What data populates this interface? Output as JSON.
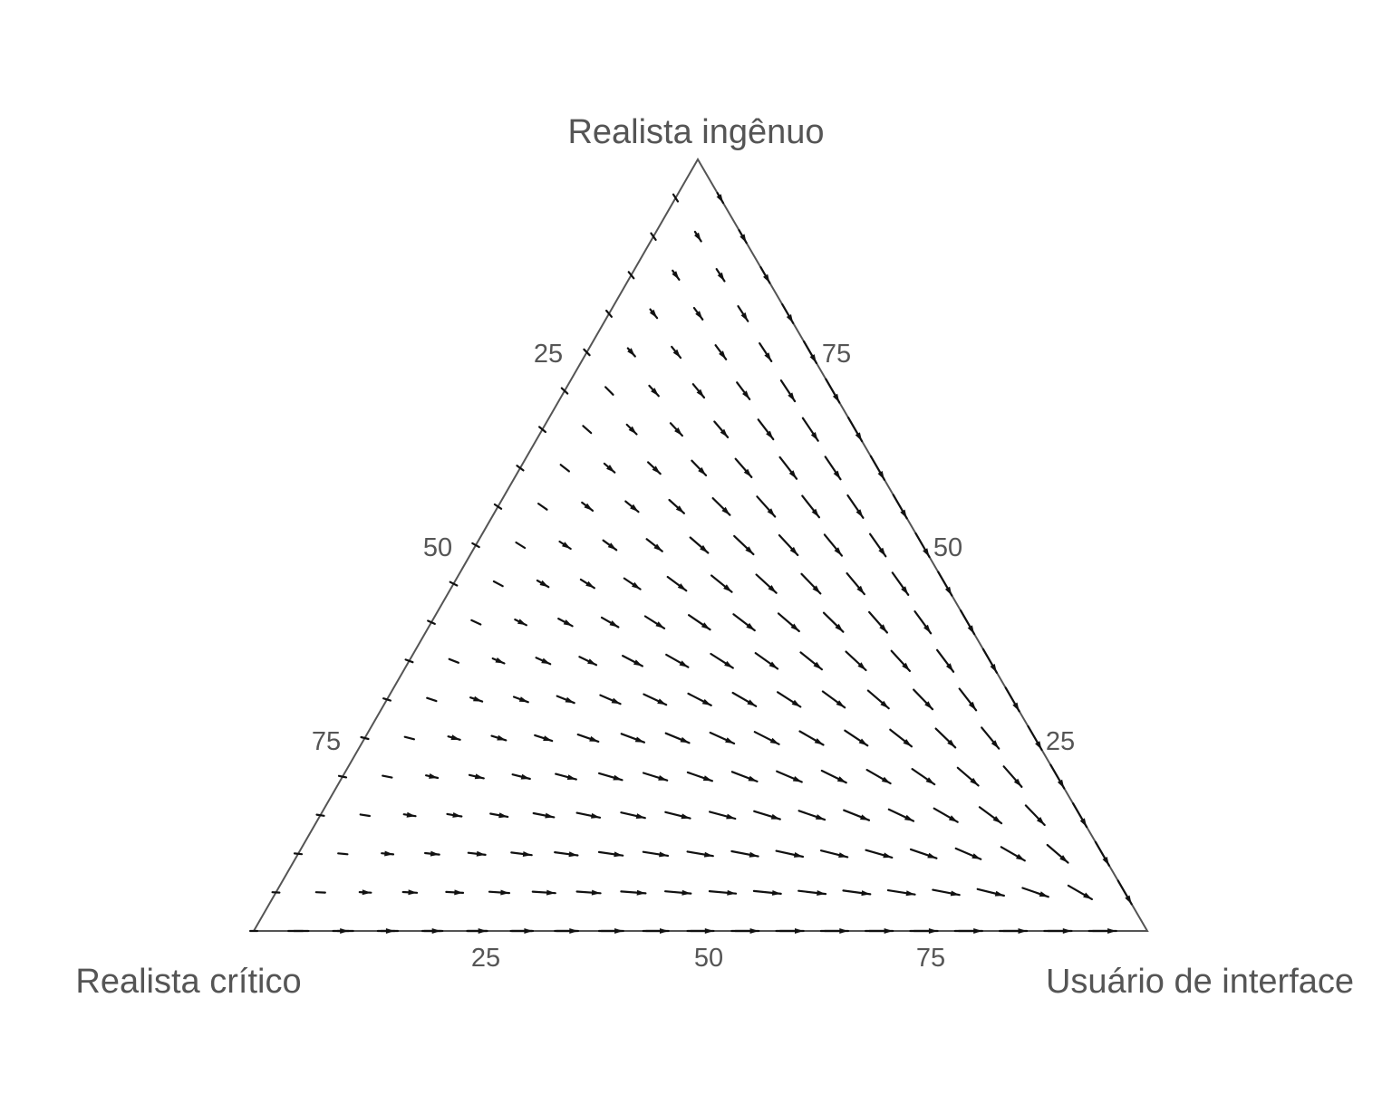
{
  "diagram": {
    "vertices": {
      "top": "Realista ingênuo",
      "left": "Realista crítico",
      "right": "Usuário de interface"
    },
    "ticks": {
      "bottom": [
        "25",
        "50",
        "75"
      ],
      "left": [
        "25",
        "50",
        "75"
      ],
      "right": [
        "75",
        "50",
        "25"
      ]
    },
    "field": {
      "description_of_flow": "vectors point toward the Usuário de interface vertex",
      "grid_divisions": 20,
      "arrow_color": "#111111",
      "line_color": "#555555"
    }
  }
}
